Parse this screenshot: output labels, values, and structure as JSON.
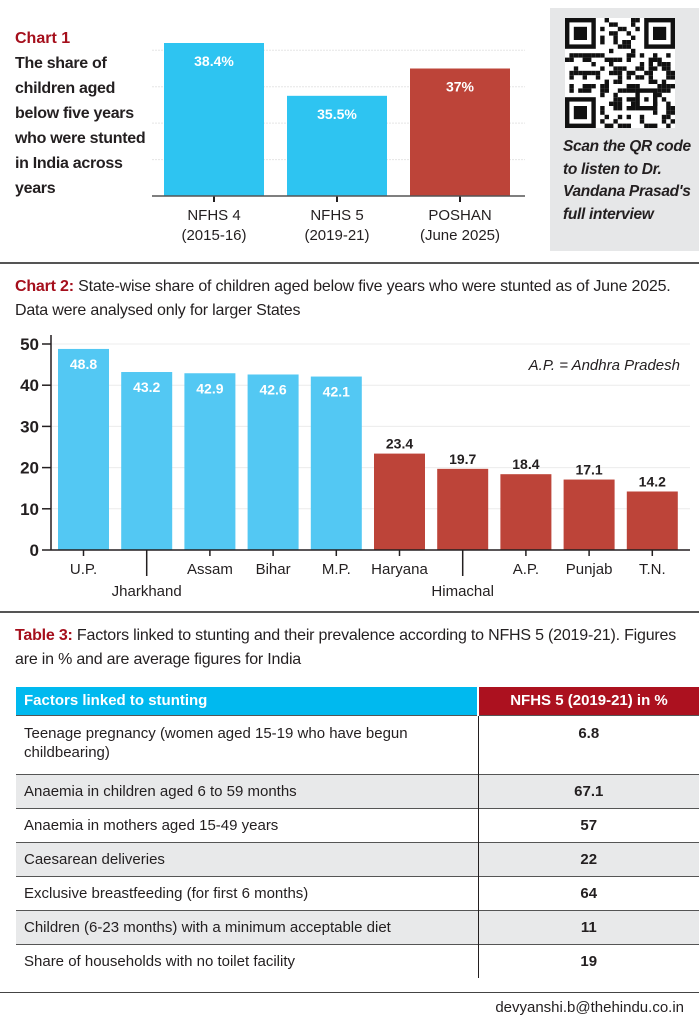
{
  "chart1": {
    "label": "Chart 1",
    "description": "The share of children aged below five years who were stunted in India across years"
  },
  "qr": {
    "icon": "qr-code-icon",
    "caption": "Scan the QR code to listen to Dr. Vandana Prasad's full interview"
  },
  "chart2": {
    "label": "Chart 2:",
    "description": " State-wise share of children aged below five years who were stunted as of June 2025. Data were analysed only for larger States",
    "note": "A.P. = Andhra Pradesh"
  },
  "table3": {
    "label": "Table 3:",
    "description": " Factors linked to stunting and their prevalence according to NFHS 5 (2019-21). Figures are in % and are average figures for India",
    "headers": [
      "Factors linked to stunting",
      "NFHS 5 (2019-21) in %"
    ],
    "rows": [
      {
        "factor": "Teenage pregnancy (women aged 15-19 who have begun childbearing)",
        "value": "6.8"
      },
      {
        "factor": "Anaemia in children aged 6 to 59 months",
        "value": "67.1"
      },
      {
        "factor": "Anaemia in mothers aged 15-49 years",
        "value": "57"
      },
      {
        "factor": "Caesarean deliveries",
        "value": "22"
      },
      {
        "factor": "Exclusive breastfeeding (for first 6 months)",
        "value": "64"
      },
      {
        "factor": "Children (6-23 months) with a minimum acceptable diet",
        "value": "11"
      },
      {
        "factor": "Share of households with no toilet facility",
        "value": "19"
      }
    ]
  },
  "footer": {
    "email": "devyanshi.b@thehindu.co.in"
  },
  "colors": {
    "blue": "#2ec4f1",
    "blue2": "#53c8f3",
    "red": "#bd4439",
    "title_red": "#a50f1c",
    "table_blue": "#00b9ef",
    "table_red": "#ac111f"
  },
  "chart_data": [
    {
      "type": "bar",
      "title": "The share of children aged below five years who were stunted in India across years",
      "categories": [
        [
          "NFHS 4",
          "(2015-16)"
        ],
        [
          "NFHS 5",
          "(2019-21)"
        ],
        [
          "POSHAN",
          "(June 2025)"
        ]
      ],
      "values": [
        38.4,
        35.5,
        37
      ],
      "value_labels": [
        "38.4%",
        "35.5%",
        "37%"
      ],
      "bar_colors": [
        "blue",
        "blue",
        "red"
      ],
      "ylim": [
        30,
        39
      ],
      "gridlines": [
        32,
        34,
        36,
        38
      ],
      "xlabel": "",
      "ylabel": "",
      "grid": true
    },
    {
      "type": "bar",
      "title": "State-wise share of children aged below five years who were stunted as of June 2025",
      "categories": [
        "U.P.",
        "Jharkhand",
        "Assam",
        "Bihar",
        "M.P.",
        "Haryana",
        "Himachal",
        "A.P.",
        "Punjab",
        "T.N."
      ],
      "values": [
        48.8,
        43.2,
        42.9,
        42.6,
        42.1,
        23.4,
        19.7,
        18.4,
        17.1,
        14.2
      ],
      "bar_colors": [
        "blue",
        "blue",
        "blue",
        "blue",
        "blue",
        "red",
        "red",
        "red",
        "red",
        "red"
      ],
      "label_offset_row": [
        0,
        1,
        0,
        0,
        0,
        0,
        1,
        0,
        0,
        0
      ],
      "yticks": [
        0,
        10,
        20,
        30,
        40,
        50
      ],
      "ylim": [
        0,
        50
      ],
      "xlabel": "",
      "ylabel": "",
      "grid": true,
      "annotation": "A.P. = Andhra Pradesh"
    }
  ]
}
